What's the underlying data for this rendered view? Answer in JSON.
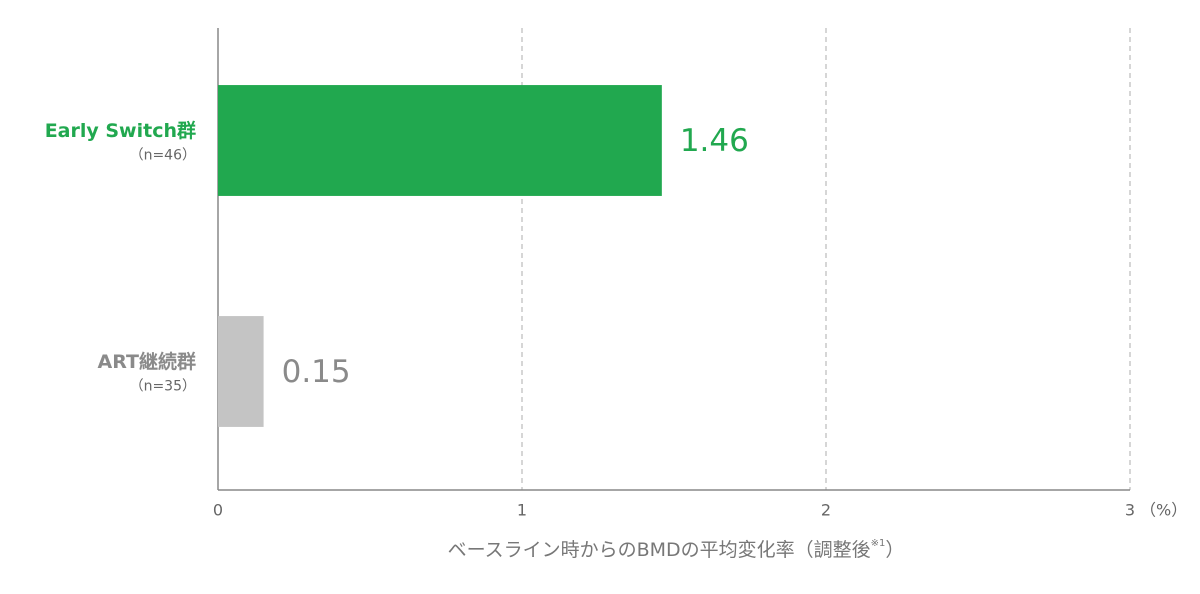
{
  "chart_data": {
    "type": "bar",
    "orientation": "horizontal",
    "categories": [
      "Early Switch群",
      "ART継続群"
    ],
    "category_notes": [
      "（n=46）",
      "（n=35）"
    ],
    "values": [
      1.46,
      0.15
    ],
    "colors": [
      "#21a84f",
      "#c4c4c4"
    ],
    "label_colors": [
      "#21a84f",
      "#8a8a8a"
    ],
    "xlim": [
      0,
      3
    ],
    "xticks": [
      0,
      1,
      2,
      3
    ],
    "x_unit": "（%）",
    "xlabel": "ベースライン時からのBMDの平均変化率（調整後",
    "xlabel_note": "※1",
    "xlabel_end": "）",
    "grid": true
  }
}
